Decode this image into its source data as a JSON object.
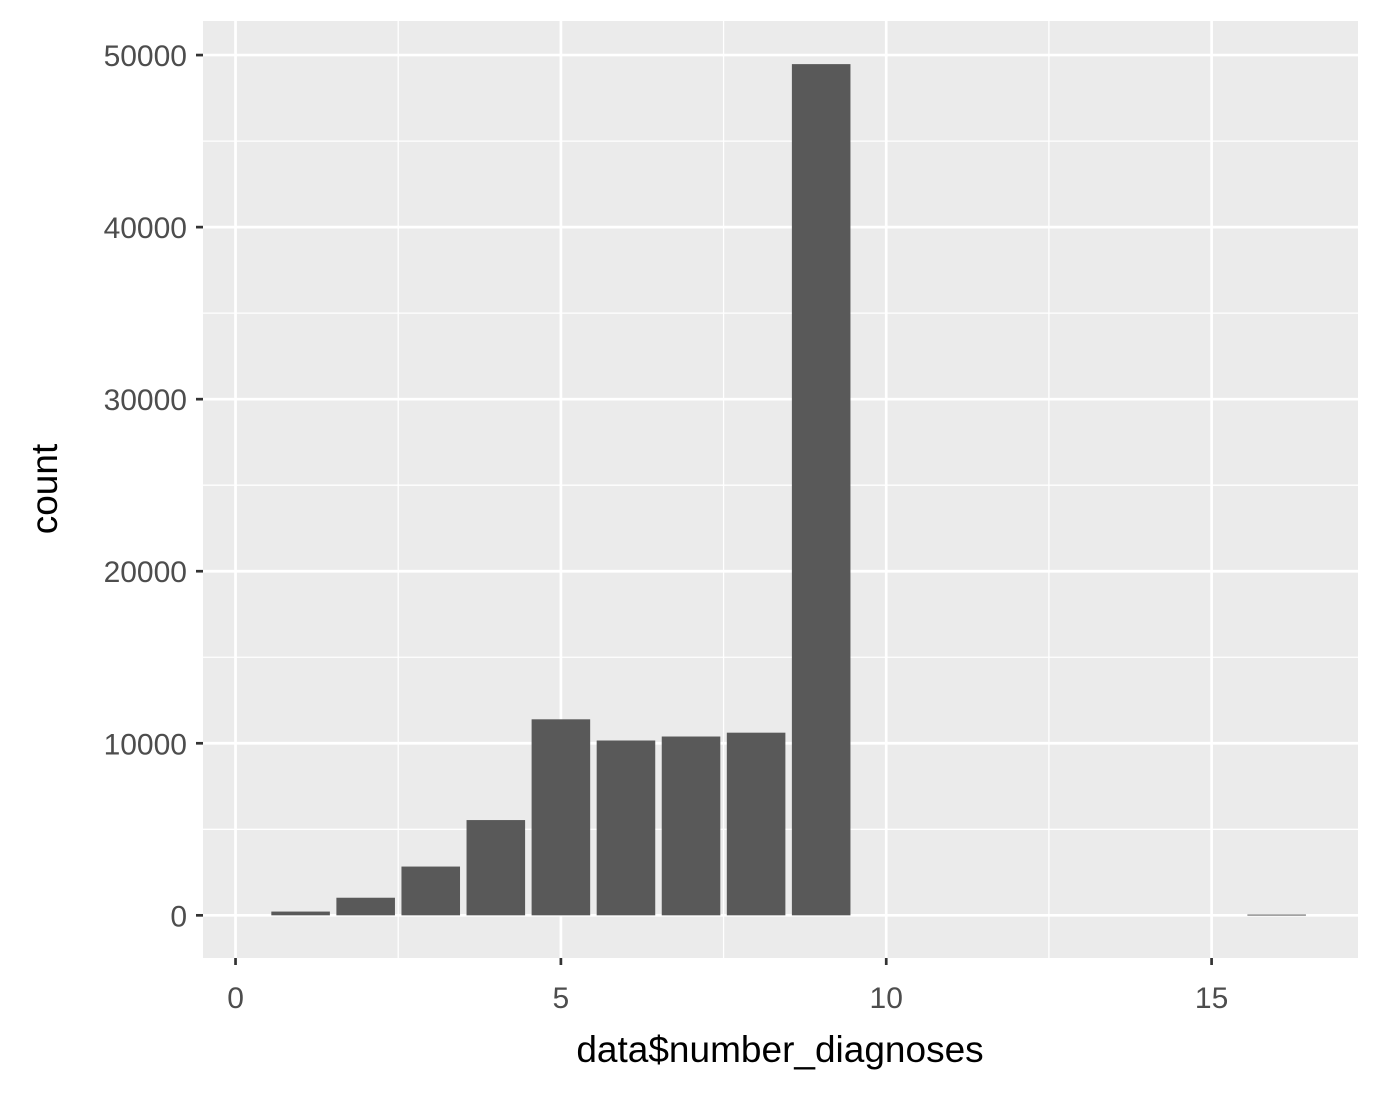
{
  "chart_data": {
    "type": "bar",
    "title": "",
    "xlabel": "data$number_diagnoses",
    "ylabel": "count",
    "x": [
      1,
      2,
      3,
      4,
      5,
      6,
      7,
      8,
      9,
      16
    ],
    "values": [
      219,
      1023,
      2835,
      5537,
      11393,
      10161,
      10393,
      10616,
      49474,
      45
    ],
    "xlim": [
      -0.5,
      17.25
    ],
    "ylim": [
      -2480,
      51980
    ],
    "x_ticks": [
      0,
      5,
      10,
      15
    ],
    "x_tick_labels": [
      "0",
      "5",
      "10",
      "15"
    ],
    "y_ticks": [
      0,
      10000,
      20000,
      30000,
      40000,
      50000
    ],
    "y_tick_labels": [
      "0",
      "10000",
      "20000",
      "30000",
      "40000",
      "50000"
    ],
    "grid": true,
    "legend": "none",
    "colors": {
      "bar": "#595959",
      "panel": "#ebebeb",
      "grid": "#ffffff",
      "tick_label": "#4d4d4d",
      "axis_title": "#000000"
    }
  }
}
